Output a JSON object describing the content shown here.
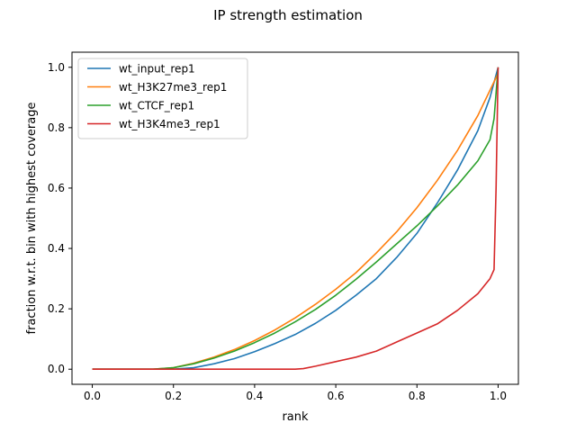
{
  "chart_data": {
    "type": "line",
    "title": "IP strength estimation",
    "xlabel": "rank",
    "ylabel": "fraction w.r.t. bin with highest coverage",
    "xlim": [
      -0.05,
      1.05
    ],
    "ylim": [
      -0.05,
      1.05
    ],
    "xticks": [
      "0.0",
      "0.2",
      "0.4",
      "0.6",
      "0.8",
      "1.0"
    ],
    "yticks": [
      "0.0",
      "0.2",
      "0.4",
      "0.6",
      "0.8",
      "1.0"
    ],
    "grid": false,
    "legend_position": "top-left",
    "series": [
      {
        "name": "wt_input_rep1",
        "color": "#1f77b4",
        "x": [
          0.0,
          0.1,
          0.2,
          0.25,
          0.3,
          0.35,
          0.4,
          0.45,
          0.5,
          0.55,
          0.6,
          0.65,
          0.7,
          0.75,
          0.8,
          0.85,
          0.9,
          0.95,
          0.98,
          1.0
        ],
        "y": [
          0.0,
          0.0,
          0.0,
          0.005,
          0.018,
          0.035,
          0.058,
          0.085,
          0.115,
          0.152,
          0.195,
          0.245,
          0.3,
          0.37,
          0.45,
          0.55,
          0.66,
          0.79,
          0.9,
          1.0
        ]
      },
      {
        "name": "wt_H3K27me3_rep1",
        "color": "#ff7f0e",
        "x": [
          0.0,
          0.1,
          0.15,
          0.2,
          0.25,
          0.3,
          0.35,
          0.4,
          0.45,
          0.5,
          0.55,
          0.6,
          0.65,
          0.7,
          0.75,
          0.8,
          0.85,
          0.9,
          0.95,
          1.0
        ],
        "y": [
          0.0,
          0.0,
          0.0,
          0.005,
          0.02,
          0.04,
          0.065,
          0.095,
          0.13,
          0.17,
          0.215,
          0.265,
          0.32,
          0.385,
          0.455,
          0.535,
          0.625,
          0.725,
          0.84,
          0.98
        ]
      },
      {
        "name": "wt_CTCF_rep1",
        "color": "#2ca02c",
        "x": [
          0.0,
          0.1,
          0.15,
          0.2,
          0.25,
          0.3,
          0.35,
          0.4,
          0.45,
          0.5,
          0.55,
          0.6,
          0.65,
          0.7,
          0.75,
          0.8,
          0.85,
          0.9,
          0.95,
          0.98,
          0.99,
          1.0
        ],
        "y": [
          0.0,
          0.0,
          0.0,
          0.005,
          0.018,
          0.037,
          0.06,
          0.088,
          0.12,
          0.157,
          0.198,
          0.245,
          0.298,
          0.355,
          0.415,
          0.475,
          0.54,
          0.61,
          0.69,
          0.76,
          0.83,
          1.0
        ]
      },
      {
        "name": "wt_H3K4me3_rep1",
        "color": "#d62728",
        "x": [
          0.0,
          0.5,
          0.52,
          0.55,
          0.6,
          0.65,
          0.7,
          0.75,
          0.8,
          0.85,
          0.9,
          0.95,
          0.98,
          0.99,
          0.995,
          1.0
        ],
        "y": [
          0.0,
          0.0,
          0.002,
          0.01,
          0.025,
          0.04,
          0.06,
          0.09,
          0.12,
          0.15,
          0.195,
          0.25,
          0.3,
          0.33,
          0.6,
          1.0
        ]
      }
    ]
  }
}
